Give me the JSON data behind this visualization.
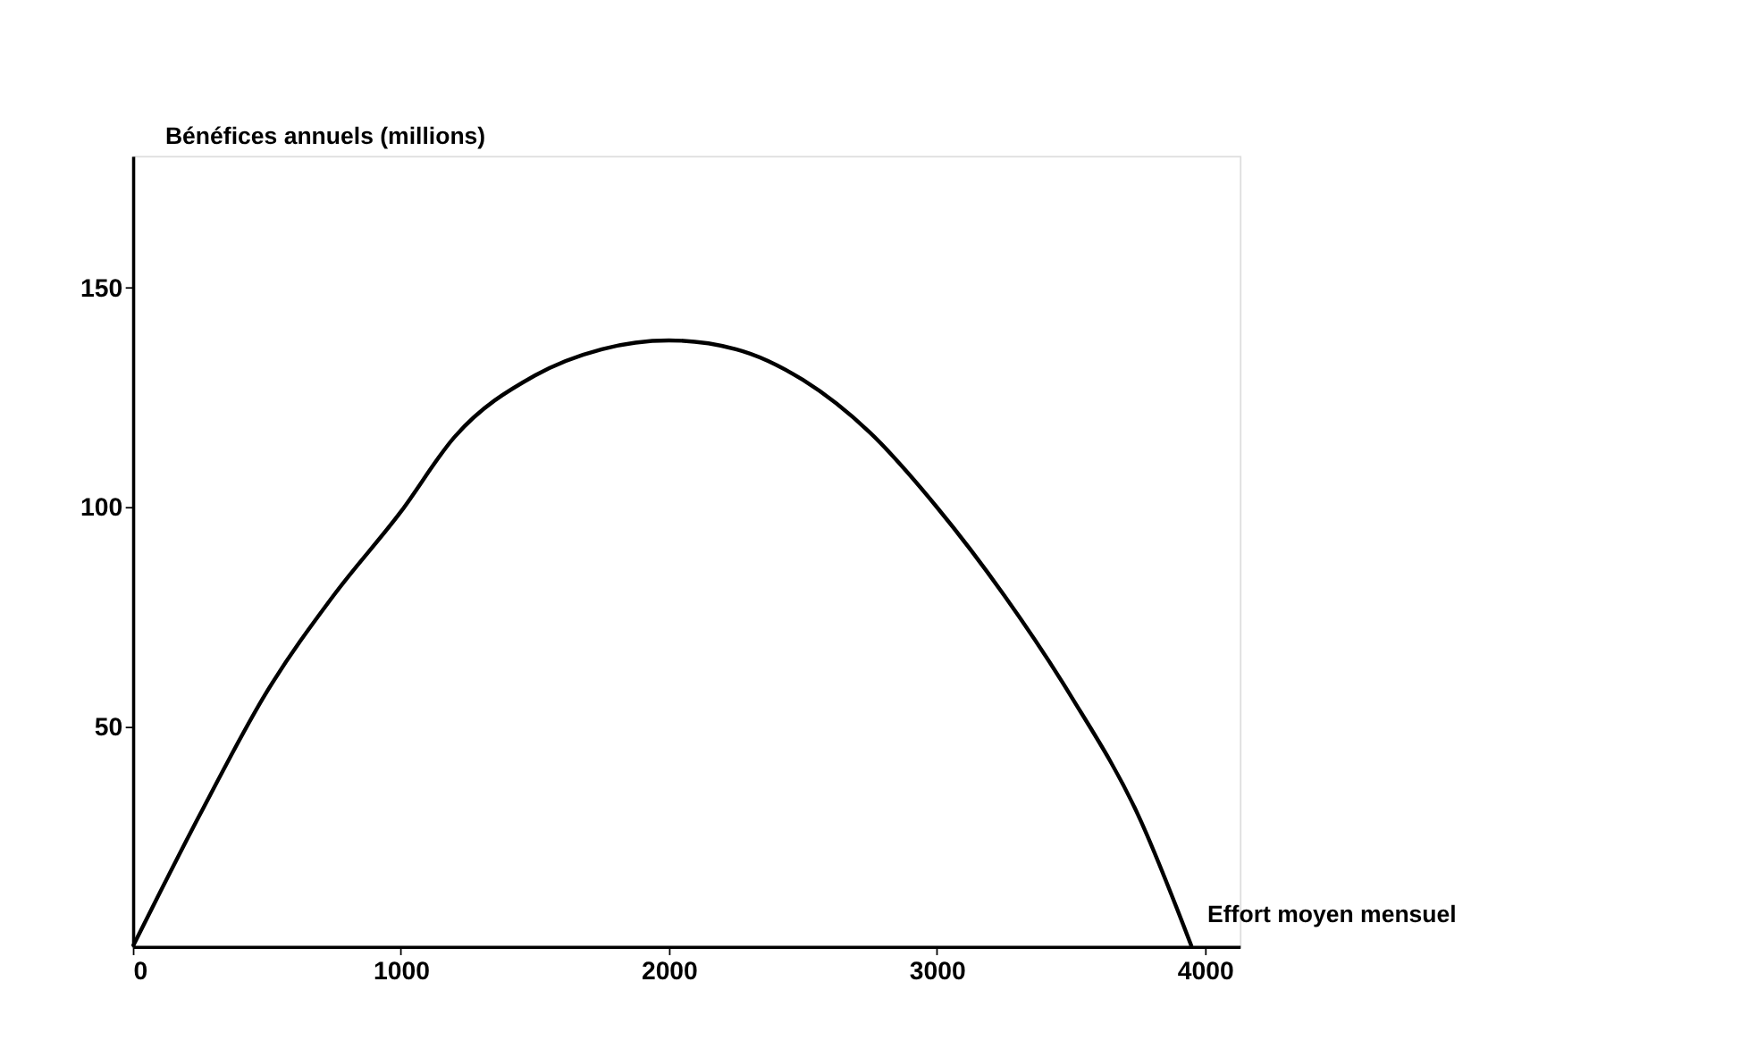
{
  "chart_data": {
    "type": "line",
    "xlabel": "Effort moyen mensuel",
    "ylabel": "Bénéfices annuels (millions)",
    "x": [
      0,
      250,
      500,
      750,
      1000,
      1200,
      1500,
      1750,
      2000,
      2250,
      2500,
      2750,
      3000,
      3250,
      3500,
      3750,
      3950
    ],
    "series": [
      {
        "color": "#000000",
        "values": [
          0,
          30,
          58,
          80,
          99,
          116,
          130,
          136,
          138,
          136,
          129,
          117,
          100,
          80,
          57,
          30,
          0
        ]
      }
    ],
    "xlim": [
      0,
      4130
    ],
    "ylim": [
      0,
      180
    ],
    "xticks": [
      0,
      1000,
      2000,
      3000,
      4000
    ],
    "yticks": [
      50,
      100,
      150
    ],
    "grid": false,
    "marker": "none",
    "line_style": "solid"
  }
}
